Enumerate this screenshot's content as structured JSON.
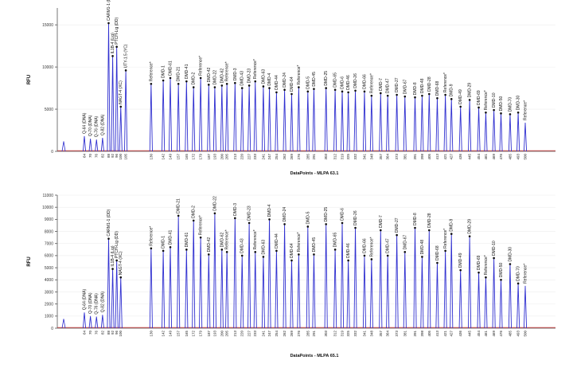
{
  "colors": {
    "trace": "#3030d0",
    "baseline": "#d04040",
    "peak_dot": "#111111",
    "axis": "#555555"
  },
  "chart_data": [
    {
      "type": "line",
      "title": "",
      "xlabel": "DataPoints - MLPA 63.1",
      "ylabel": "RFU",
      "ylim": [
        0,
        17000
      ],
      "yticks": [
        0,
        5000,
        10000,
        15000
      ],
      "ref_peak": {
        "label": "Reference*",
        "height": 3400
      },
      "peaks": [
        {
          "label": "Q-64 (DNA)",
          "pos": "64",
          "height": 1800,
          "dot": false
        },
        {
          "label": "Q-70 (DNA)",
          "pos": "70",
          "height": 1500,
          "dot": false
        },
        {
          "label": "Q-76 (DNA)",
          "pos": "76",
          "height": 1400,
          "dot": false
        },
        {
          "label": "Q-82 (DNA)",
          "pos": "82",
          "height": 1600,
          "dot": false
        },
        {
          "label": "CARM1-1 (DD)",
          "pos": "88",
          "height": 15200,
          "dot": true
        },
        {
          "label": "IL1B-4 (Lig)",
          "pos": "92",
          "height": 11300,
          "dot": true
        },
        {
          "label": "PTCH-Lig (DD)",
          "pos": "96",
          "height": 12400,
          "dot": true
        },
        {
          "label": "NAGT-4 (XC)",
          "pos": "100",
          "height": 5300,
          "dot": true
        },
        {
          "label": "UTY-1.5 (YC)",
          "pos": "105",
          "height": 9600,
          "dot": true
        },
        {
          "label": "Reference*",
          "pos": "130",
          "height": 8000,
          "dot": true
        },
        {
          "label": "DMD-1",
          "pos": "142",
          "height": 8400,
          "dot": true
        },
        {
          "label": "DMD-61",
          "pos": "149",
          "height": 8700,
          "dot": true
        },
        {
          "label": "DMD-21",
          "pos": "157",
          "height": 8000,
          "dot": true
        },
        {
          "label": "DMD-41",
          "pos": "165",
          "height": 8300,
          "dot": true
        },
        {
          "label": "DMD-2",
          "pos": "172",
          "height": 7600,
          "dot": true
        },
        {
          "label": "Reference*",
          "pos": "179",
          "height": 8700,
          "dot": true
        },
        {
          "label": "DMD-42",
          "pos": "187",
          "height": 7900,
          "dot": true
        },
        {
          "label": "DMD-22",
          "pos": "193",
          "height": 7600,
          "dot": true
        },
        {
          "label": "DMD-62",
          "pos": "200",
          "height": 7800,
          "dot": true
        },
        {
          "label": "Reference*",
          "pos": "205",
          "height": 8000,
          "dot": true
        },
        {
          "label": "DMD-3",
          "pos": "213",
          "height": 8100,
          "dot": true
        },
        {
          "label": "DMD-43",
          "pos": "220",
          "height": 7500,
          "dot": true
        },
        {
          "label": "DMD-23",
          "pos": "227",
          "height": 7800,
          "dot": true
        },
        {
          "label": "Reference*",
          "pos": "233",
          "height": 8300,
          "dot": true
        },
        {
          "label": "DMD-63",
          "pos": "241",
          "height": 7700,
          "dot": true
        },
        {
          "label": "DMD-4",
          "pos": "247",
          "height": 7500,
          "dot": true
        },
        {
          "label": "DMD-44",
          "pos": "254",
          "height": 7000,
          "dot": true
        },
        {
          "label": "DMD-24",
          "pos": "262",
          "height": 7300,
          "dot": true
        },
        {
          "label": "DMD-64",
          "pos": "269",
          "height": 6800,
          "dot": true
        },
        {
          "label": "Reference*",
          "pos": "276",
          "height": 7600,
          "dot": true
        },
        {
          "label": "DMD-5",
          "pos": "285",
          "height": 7100,
          "dot": true
        },
        {
          "label": "DMD-45",
          "pos": "291",
          "height": 7400,
          "dot": true
        },
        {
          "label": "DMD-25",
          "pos": "303",
          "height": 7500,
          "dot": true
        },
        {
          "label": "DMD-65",
          "pos": "312",
          "height": 7300,
          "dot": true
        },
        {
          "label": "DMD-6",
          "pos": "319",
          "height": 7100,
          "dot": true
        },
        {
          "label": "DMD-46",
          "pos": "325",
          "height": 7000,
          "dot": true
        },
        {
          "label": "DMD-26",
          "pos": "332",
          "height": 7200,
          "dot": true
        },
        {
          "label": "DMD-66",
          "pos": "341",
          "height": 7100,
          "dot": true
        },
        {
          "label": "Reference*",
          "pos": "348",
          "height": 6600,
          "dot": true
        },
        {
          "label": "DMD-7",
          "pos": "357",
          "height": 6900,
          "dot": true
        },
        {
          "label": "DMD-47",
          "pos": "364",
          "height": 6600,
          "dot": true
        },
        {
          "label": "DMD-27",
          "pos": "373",
          "height": 6700,
          "dot": true
        },
        {
          "label": "DMD-67",
          "pos": "381",
          "height": 6500,
          "dot": true
        },
        {
          "label": "DMD-8",
          "pos": "391",
          "height": 6400,
          "dot": true
        },
        {
          "label": "DMD-48",
          "pos": "398",
          "height": 6600,
          "dot": true
        },
        {
          "label": "DMD-28",
          "pos": "405",
          "height": 6800,
          "dot": true
        },
        {
          "label": "DMD-68",
          "pos": "413",
          "height": 6300,
          "dot": true
        },
        {
          "label": "Reference*",
          "pos": "421",
          "height": 6700,
          "dot": true
        },
        {
          "label": "DMD-9",
          "pos": "427",
          "height": 6200,
          "dot": true
        },
        {
          "label": "DMD-49",
          "pos": "436",
          "height": 5300,
          "dot": true
        },
        {
          "label": "DMD-29",
          "pos": "445",
          "height": 6100,
          "dot": true
        },
        {
          "label": "DMD-69",
          "pos": "454",
          "height": 5200,
          "dot": true
        },
        {
          "label": "Reference*",
          "pos": "461",
          "height": 4600,
          "dot": true
        },
        {
          "label": "DMD-10",
          "pos": "469",
          "height": 4900,
          "dot": true
        },
        {
          "label": "DMD-50",
          "pos": "476",
          "height": 4500,
          "dot": true
        },
        {
          "label": "DMD-70",
          "pos": "485",
          "height": 4400,
          "dot": true
        },
        {
          "label": "DMD-30",
          "pos": "493",
          "height": 4600,
          "dot": true
        },
        {
          "label": "Reference*",
          "pos": "500",
          "height": 3400,
          "dot": false
        }
      ]
    },
    {
      "type": "line",
      "title": "",
      "xlabel": "DataPoints - MLPA 65.1",
      "ylabel": "RFU",
      "ylim": [
        0,
        11000
      ],
      "yticks": [
        0,
        1000,
        2000,
        3000,
        4000,
        5000,
        6000,
        7000,
        8000,
        9000,
        10000,
        11000
      ],
      "ref_peak": {
        "label": "Reference*",
        "height": 3500
      },
      "peaks": [
        {
          "label": "Q-64 (DNA)",
          "pos": "64",
          "height": 1300,
          "dot": false
        },
        {
          "label": "Q-70 (DNA)",
          "pos": "70",
          "height": 1000,
          "dot": false
        },
        {
          "label": "Q-76 (DNA)",
          "pos": "76",
          "height": 950,
          "dot": false
        },
        {
          "label": "Q-82 (DNA)",
          "pos": "82",
          "height": 1100,
          "dot": false
        },
        {
          "label": "CARM1-1 (DD)",
          "pos": "88",
          "height": 7400,
          "dot": true
        },
        {
          "label": "IL1B-4 (Lig)",
          "pos": "92",
          "height": 4900,
          "dot": true
        },
        {
          "label": "PTCH-Lig (DD)",
          "pos": "96",
          "height": 5600,
          "dot": true
        },
        {
          "label": "NAGT-4 (XC)",
          "pos": "100",
          "height": 4200,
          "dot": true
        },
        {
          "label": "Reference*",
          "pos": "130",
          "height": 6600,
          "dot": true
        },
        {
          "label": "DMD-1",
          "pos": "142",
          "height": 6400,
          "dot": true
        },
        {
          "label": "DMD-41",
          "pos": "149",
          "height": 6700,
          "dot": true
        },
        {
          "label": "DMD-21",
          "pos": "157",
          "height": 9300,
          "dot": true
        },
        {
          "label": "DMD-61",
          "pos": "165",
          "height": 6500,
          "dot": true
        },
        {
          "label": "DMD-2",
          "pos": "172",
          "height": 8900,
          "dot": true
        },
        {
          "label": "Reference*",
          "pos": "179",
          "height": 7500,
          "dot": true
        },
        {
          "label": "DMD-42",
          "pos": "187",
          "height": 6100,
          "dot": true
        },
        {
          "label": "DMD-22",
          "pos": "193",
          "height": 9500,
          "dot": true
        },
        {
          "label": "DMD-62",
          "pos": "200",
          "height": 6500,
          "dot": true
        },
        {
          "label": "Reference*",
          "pos": "205",
          "height": 6300,
          "dot": true
        },
        {
          "label": "DMD-3",
          "pos": "213",
          "height": 9100,
          "dot": true
        },
        {
          "label": "DMD-43",
          "pos": "220",
          "height": 6000,
          "dot": true
        },
        {
          "label": "DMD-23",
          "pos": "227",
          "height": 8700,
          "dot": true
        },
        {
          "label": "Reference*",
          "pos": "233",
          "height": 6300,
          "dot": true
        },
        {
          "label": "DMD-63",
          "pos": "241",
          "height": 5900,
          "dot": true
        },
        {
          "label": "DMD-4",
          "pos": "247",
          "height": 9000,
          "dot": true
        },
        {
          "label": "DMD-44",
          "pos": "254",
          "height": 6400,
          "dot": true
        },
        {
          "label": "DMD-24",
          "pos": "262",
          "height": 8600,
          "dot": true
        },
        {
          "label": "DMD-64",
          "pos": "269",
          "height": 5600,
          "dot": true
        },
        {
          "label": "Reference*",
          "pos": "276",
          "height": 6100,
          "dot": true
        },
        {
          "label": "DMD-5",
          "pos": "285",
          "height": 8400,
          "dot": true
        },
        {
          "label": "DMD-45",
          "pos": "291",
          "height": 6100,
          "dot": true
        },
        {
          "label": "DMD-25",
          "pos": "303",
          "height": 8600,
          "dot": true
        },
        {
          "label": "DMD-65",
          "pos": "312",
          "height": 6500,
          "dot": true
        },
        {
          "label": "DMD-6",
          "pos": "319",
          "height": 8700,
          "dot": true
        },
        {
          "label": "DMD-46",
          "pos": "325",
          "height": 5600,
          "dot": true
        },
        {
          "label": "DMD-26",
          "pos": "332",
          "height": 8300,
          "dot": true
        },
        {
          "label": "DMD-66",
          "pos": "341",
          "height": 6000,
          "dot": true
        },
        {
          "label": "Reference*",
          "pos": "348",
          "height": 5700,
          "dot": true
        },
        {
          "label": "DMD-7",
          "pos": "357",
          "height": 8100,
          "dot": true
        },
        {
          "label": "DMD-47",
          "pos": "364",
          "height": 6000,
          "dot": true
        },
        {
          "label": "DMD-27",
          "pos": "373",
          "height": 7700,
          "dot": true
        },
        {
          "label": "DMD-67",
          "pos": "381",
          "height": 6300,
          "dot": true
        },
        {
          "label": "DMD-8",
          "pos": "391",
          "height": 8300,
          "dot": true
        },
        {
          "label": "DMD-48",
          "pos": "398",
          "height": 5900,
          "dot": true
        },
        {
          "label": "DMD-28",
          "pos": "405",
          "height": 8100,
          "dot": true
        },
        {
          "label": "DMD-68",
          "pos": "413",
          "height": 5400,
          "dot": true
        },
        {
          "label": "Reference*",
          "pos": "421",
          "height": 6400,
          "dot": true
        },
        {
          "label": "DMD-9",
          "pos": "427",
          "height": 7800,
          "dot": true
        },
        {
          "label": "DMD-49",
          "pos": "436",
          "height": 4800,
          "dot": true
        },
        {
          "label": "DMD-29",
          "pos": "445",
          "height": 7600,
          "dot": true
        },
        {
          "label": "DMD-69",
          "pos": "454",
          "height": 4600,
          "dot": true
        },
        {
          "label": "Reference*",
          "pos": "461",
          "height": 4200,
          "dot": true
        },
        {
          "label": "DMD-10",
          "pos": "469",
          "height": 5800,
          "dot": true
        },
        {
          "label": "DMD-50",
          "pos": "476",
          "height": 4000,
          "dot": true
        },
        {
          "label": "DMD-30",
          "pos": "485",
          "height": 5300,
          "dot": true
        },
        {
          "label": "DMD-70",
          "pos": "493",
          "height": 3700,
          "dot": true
        },
        {
          "label": "Reference*",
          "pos": "500",
          "height": 3500,
          "dot": false
        }
      ]
    }
  ]
}
